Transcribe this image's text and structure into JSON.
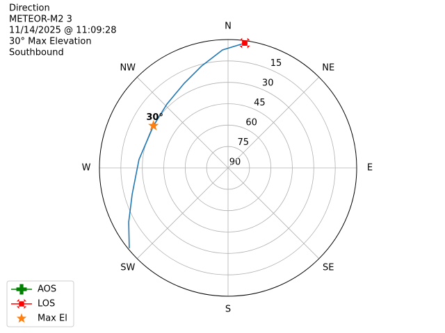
{
  "chart_data": {
    "type": "polar",
    "title": [
      "Direction",
      "METEOR-M2 3",
      "11/14/2025 @ 11:09:28",
      "30° Max Elevation",
      "Southbound"
    ],
    "rlim": [
      90,
      0
    ],
    "rticks": [
      15,
      30,
      45,
      60,
      75,
      90
    ],
    "thetaticks": [
      {
        "value": 0,
        "label": "N"
      },
      {
        "value": 45,
        "label": "NE"
      },
      {
        "value": 90,
        "label": "E"
      },
      {
        "value": 135,
        "label": "SE"
      },
      {
        "value": 180,
        "label": "S"
      },
      {
        "value": 225,
        "label": "SW"
      },
      {
        "value": 270,
        "label": "W"
      },
      {
        "value": 315,
        "label": "NW"
      }
    ],
    "grid": true,
    "legend": "lower left",
    "series": [
      {
        "color": "#1f77b4",
        "marker": "line",
        "x": [
          230.8,
          241.4,
          254.6,
          275.4,
          299.5,
          316.3,
          332.7,
          345.5,
          357.3,
          7.6
        ],
        "values": [
          0.8,
          10.8,
          20.4,
          27.4,
          30,
          28.1,
          23.2,
          16.2,
          7.2,
          1.7
        ]
      },
      {
        "name": "AOS",
        "color": "#008000",
        "marker": "plus",
        "x": [],
        "values": []
      },
      {
        "name": "LOS",
        "color": "#ff0000",
        "marker": "x",
        "x": [
          7.6
        ],
        "values": [
          1.7
        ]
      },
      {
        "name": "Max El",
        "color": "#ff7f0e",
        "marker": "star",
        "x": [
          299.5
        ],
        "values": [
          30
        ],
        "value_labels": [
          "30°"
        ]
      }
    ]
  }
}
